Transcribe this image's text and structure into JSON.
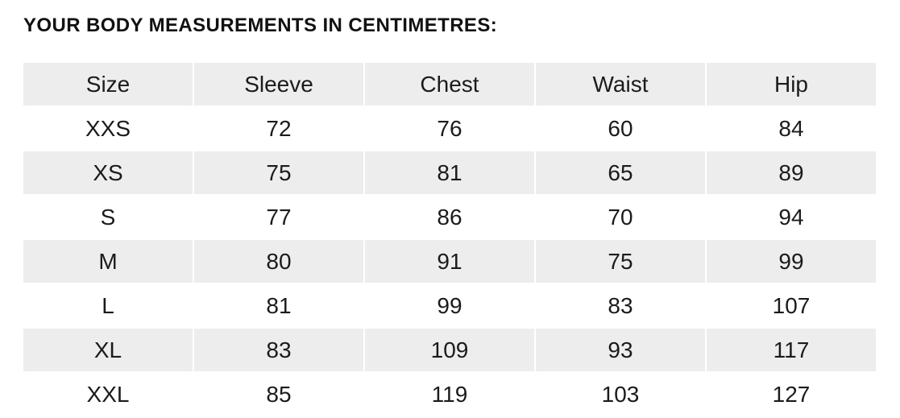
{
  "title": "YOUR BODY MEASUREMENTS IN CENTIMETRES:",
  "table": {
    "columns": [
      "Size",
      "Sleeve",
      "Chest",
      "Waist",
      "Hip"
    ],
    "rows": [
      [
        "XXS",
        "72",
        "76",
        "60",
        "84"
      ],
      [
        "XS",
        "75",
        "81",
        "65",
        "89"
      ],
      [
        "S",
        "77",
        "86",
        "70",
        "94"
      ],
      [
        "M",
        "80",
        "91",
        "75",
        "99"
      ],
      [
        "L",
        "81",
        "99",
        "83",
        "107"
      ],
      [
        "XL",
        "83",
        "109",
        "93",
        "117"
      ],
      [
        "XXL",
        "85",
        "119",
        "103",
        "127"
      ]
    ]
  },
  "colors": {
    "stripe": "#ededed",
    "text": "#1b1b1b",
    "background": "#ffffff"
  }
}
